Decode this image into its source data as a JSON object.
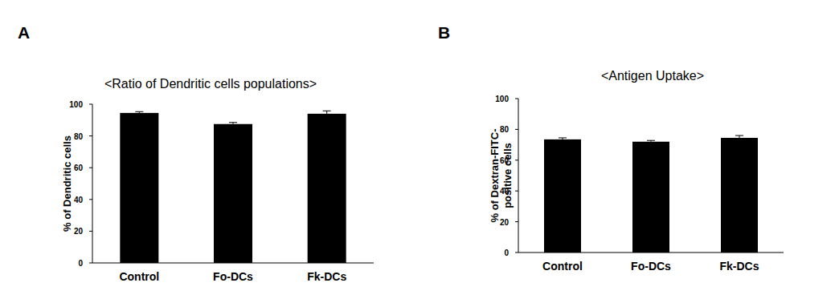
{
  "chart_data": [
    {
      "type": "bar",
      "panel": "A",
      "title": "<Ratio of Dendritic cells populations>",
      "y_label": "% of Dendritic cells",
      "categories": [
        "Control",
        "Fo-DCs",
        "Fk-DCs"
      ],
      "values": [
        94.5,
        87.5,
        94
      ],
      "errors": [
        0.8,
        1.0,
        1.8
      ],
      "color": "#000000",
      "ylim": [
        0,
        100
      ],
      "yticks": [
        0,
        20,
        40,
        60,
        80,
        100
      ],
      "grid": false
    },
    {
      "type": "bar",
      "panel": "B",
      "title": "<Antigen Uptake>",
      "y_label": "% of Dextran-FITC-\npositive cells",
      "categories": [
        "Control",
        "Fo-DCs",
        "Fk-DCs"
      ],
      "values": [
        73.5,
        72,
        74.5
      ],
      "errors": [
        1.0,
        0.8,
        1.5
      ],
      "color": "#000000",
      "ylim": [
        0,
        100
      ],
      "yticks": [
        0,
        20,
        40,
        60,
        80,
        100
      ],
      "grid": false
    }
  ]
}
